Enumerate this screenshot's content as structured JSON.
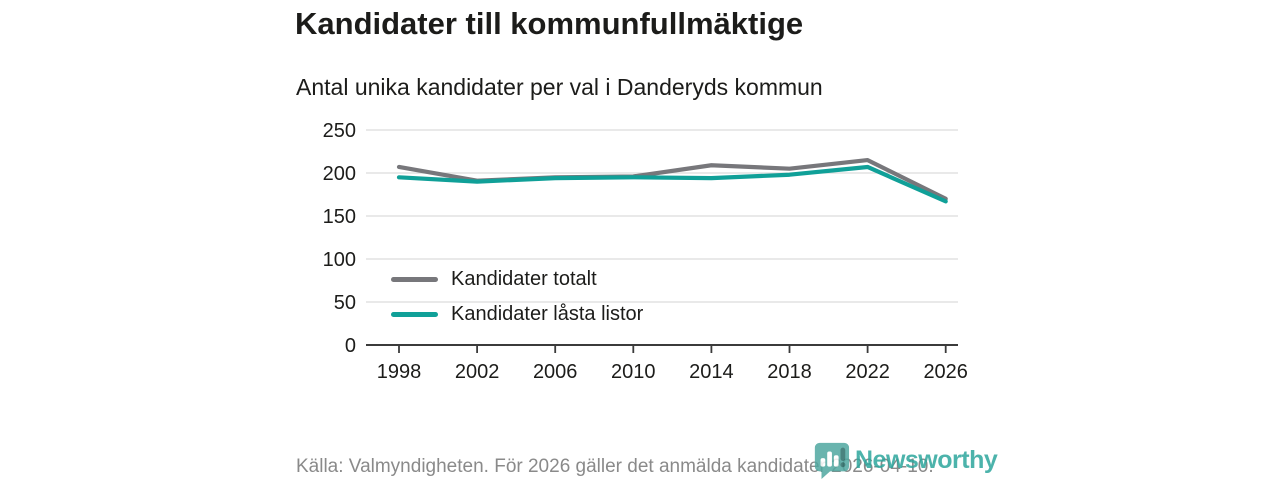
{
  "header": {
    "title": "Kandidater till kommunfullmäktige",
    "subtitle": "Antal unika kandidater per val i Danderyds kommun"
  },
  "chart_data": {
    "type": "line",
    "title": "Kandidater till kommunfullmäktige",
    "subtitle": "Antal unika kandidater per val i Danderyds kommun",
    "x": [
      1998,
      2002,
      2006,
      2010,
      2014,
      2018,
      2022,
      2026
    ],
    "series": [
      {
        "name": "Kandidater totalt",
        "color": "#77777b",
        "values": [
          207,
          191,
          195,
          196,
          209,
          205,
          215,
          170
        ]
      },
      {
        "name": "Kandidater låsta listor",
        "color": "#10a098",
        "values": [
          195,
          190,
          194,
          195,
          194,
          198,
          207,
          167
        ]
      }
    ],
    "ylim": [
      0,
      250
    ],
    "yticks": [
      0,
      50,
      100,
      150,
      200,
      250
    ],
    "xlabel": "",
    "ylabel": "",
    "grid": "horizontal",
    "legend_position": "inside-bottom-left",
    "colors": {
      "grid": "#dcdcdc",
      "axis": "#3b3b3b",
      "tick_label": "#1c1c1a"
    }
  },
  "footer": {
    "source": "Källa: Valmyndigheten. För 2026 gäller det anmälda kandidater 2026-04-10."
  },
  "logo": {
    "brand": "Newsworthy",
    "color": "#2da69d",
    "bubble_color": "#4fa8a0"
  }
}
